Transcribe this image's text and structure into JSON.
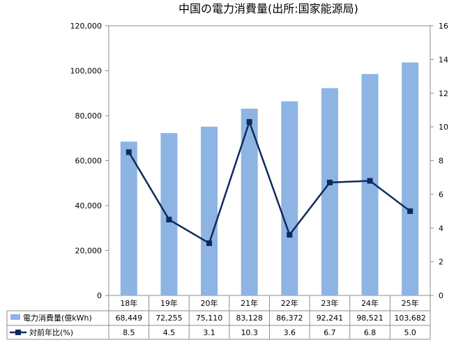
{
  "chart_data": {
    "type": "bar",
    "title": "中国の電力消費量(出所:国家能源局)",
    "categories": [
      "18年",
      "19年",
      "20年",
      "21年",
      "22年",
      "23年",
      "24年",
      "25年"
    ],
    "series": [
      {
        "name": "電力消費量(億kWh)",
        "type": "bar",
        "axis": "left",
        "values": [
          68449,
          72255,
          75110,
          83128,
          86372,
          92241,
          98521,
          103682
        ],
        "labels": [
          "68,449",
          "72,255",
          "75,110",
          "83,128",
          "86,372",
          "92,241",
          "98,521",
          "103,682"
        ],
        "color": "#8EB4E3"
      },
      {
        "name": "対前年比(%)",
        "type": "line",
        "axis": "right",
        "values": [
          8.5,
          4.5,
          3.1,
          10.3,
          3.6,
          6.7,
          6.8,
          5.0
        ],
        "labels": [
          "8.5",
          "4.5",
          "3.1",
          "10.3",
          "3.6",
          "6.7",
          "6.8",
          "5.0"
        ],
        "color": "#0E2A5C"
      }
    ],
    "y_left": {
      "lim": [
        0,
        120000
      ],
      "ticks": [
        0,
        20000,
        40000,
        60000,
        80000,
        100000,
        120000
      ],
      "tick_labels": [
        "0",
        "20,000",
        "40,000",
        "60,000",
        "80,000",
        "100,000",
        "120,000"
      ]
    },
    "y_right": {
      "lim": [
        0,
        16
      ],
      "ticks": [
        0,
        2,
        4,
        6,
        8,
        10,
        12,
        14,
        16
      ],
      "tick_labels": [
        "0",
        "2",
        "4",
        "6",
        "8",
        "10",
        "12",
        "14",
        "16"
      ]
    },
    "grid": false,
    "legend": "data-table-bottom"
  }
}
